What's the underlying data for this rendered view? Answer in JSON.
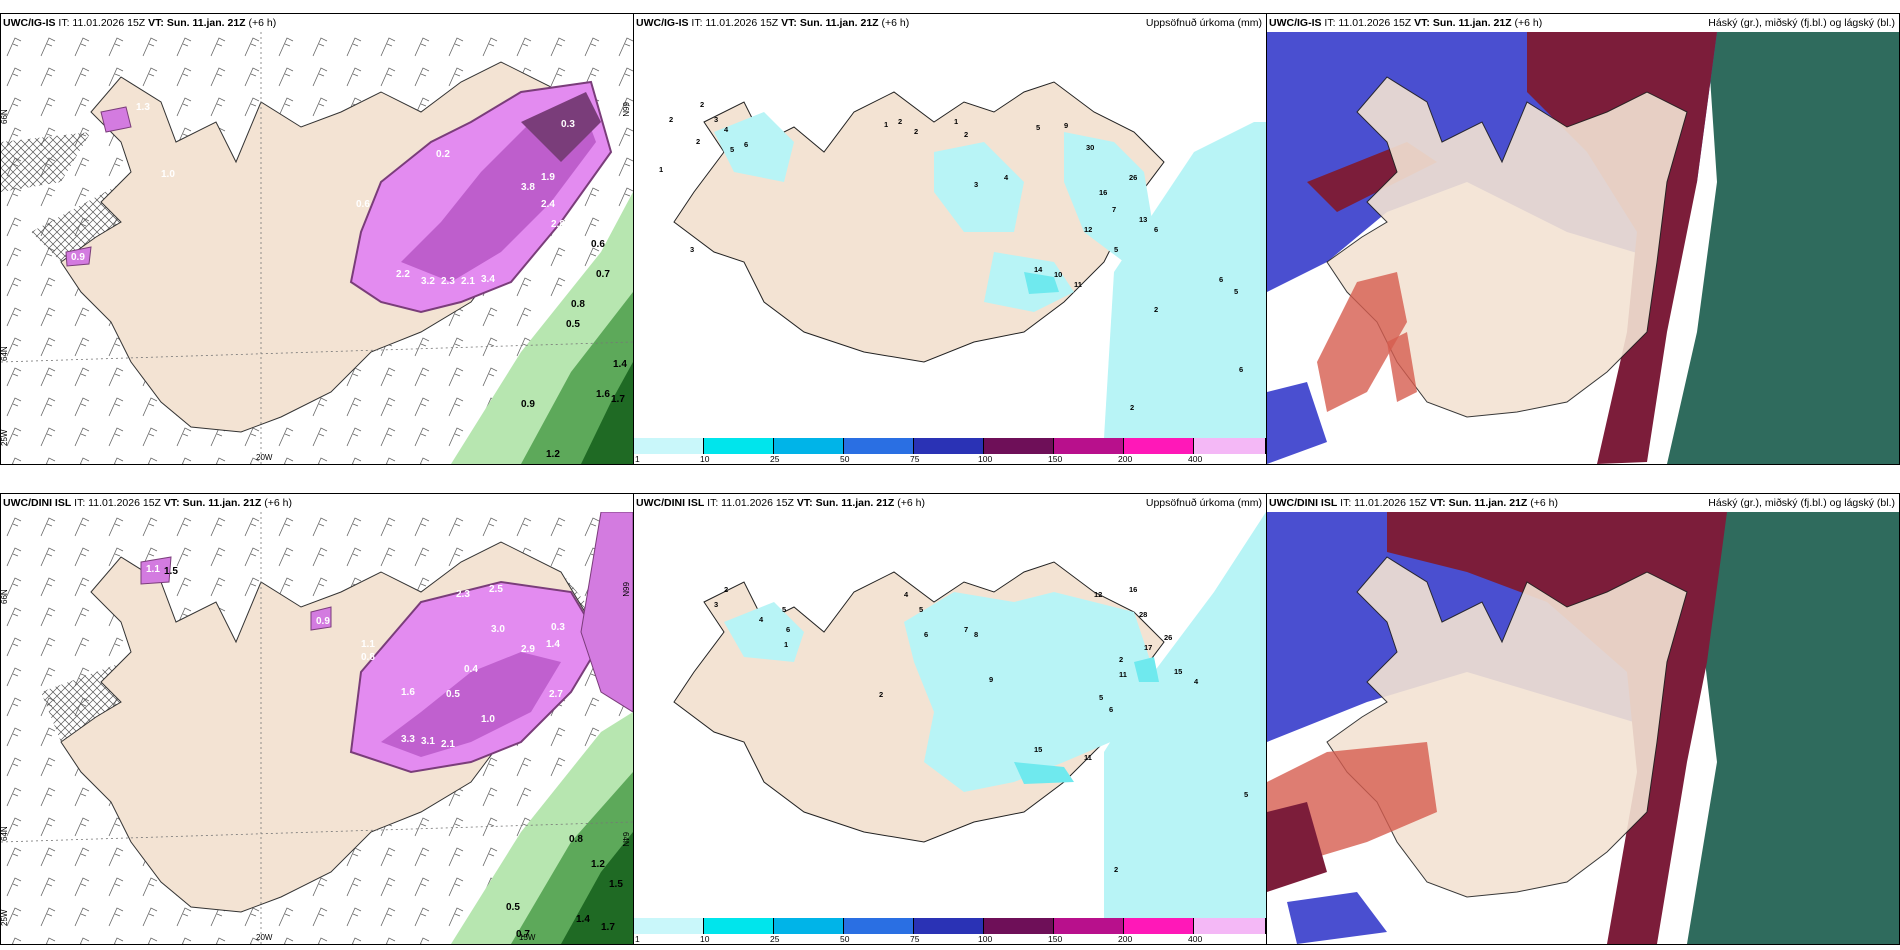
{
  "colors": {
    "land": "#f3e3d3",
    "sea": "#ffffff",
    "precip_light": "#b8f4f6",
    "precip_mid": "#6fe9ee",
    "purple_light": "#e38bf0",
    "purple_dark": "#7a3d7a",
    "green_light": "#b7e6b0",
    "green_dark": "#1f6a24",
    "cloud_high": "#7c1d3a",
    "cloud_mid": "#4a4fd0",
    "cloud_low": "#2f6b5d",
    "cloud_red": "#d65d4f"
  },
  "rows": [
    {
      "model": "UWC/IG-IS",
      "issue": "IT: 11.01.2026 15Z",
      "vt_label": "VT:",
      "valid": "Sun. 11.jan. 21Z",
      "lead": "(+6 h)",
      "left_lat_labels": [
        "66N",
        "64N",
        "25W"
      ],
      "left_bottom_labels": [
        "20W"
      ],
      "left_right_labels": [
        "66N"
      ],
      "left_values": [
        "1.3",
        "0.3",
        "1.0",
        "0.6",
        "0.9",
        "0.2",
        "2.2",
        "3.2",
        "2.3",
        "2.1",
        "3.4",
        "3.8",
        "2.4",
        "2.8",
        "1.9",
        "0.5",
        "0.6",
        "0.7",
        "0.8",
        "0.9",
        "1.4",
        "1.6",
        "1.7",
        "1.2"
      ],
      "precip_title": "Uppsöfnuð úrkoma (mm)",
      "precip_values": [
        "2",
        "3",
        "4",
        "5",
        "6",
        "1",
        "2",
        "3",
        "2",
        "1",
        "2",
        "2",
        "1",
        "2",
        "3",
        "4",
        "5",
        "9",
        "30",
        "26",
        "16",
        "7",
        "13",
        "6",
        "14",
        "10",
        "11",
        "12",
        "5",
        "2",
        "6",
        "5",
        "6",
        "2"
      ],
      "cloud_title": "Háský (gr.), miðský (fj.bl.) og lágský (bl.)"
    },
    {
      "model": "UWC/DINI ISL",
      "issue": "IT: 11.01.2026 15Z",
      "vt_label": "VT:",
      "valid": "Sun. 11.jan. 21Z",
      "lead": "(+6 h)",
      "left_lat_labels": [
        "66N",
        "64N",
        "25W"
      ],
      "left_bottom_labels": [
        "20W",
        "15W"
      ],
      "left_right_labels": [
        "66N",
        "64N"
      ],
      "left_values": [
        "1.1",
        "1.5",
        "0.9",
        "1.1",
        "0.8",
        "2.3",
        "2.5",
        "3.0",
        "2.9",
        "1.6",
        "0.4",
        "0.5",
        "3.3",
        "3.1",
        "2.1",
        "1.0",
        "0.3",
        "1.4",
        "2.7",
        "0.2",
        "0.8",
        "1.2",
        "1.5",
        "0.5",
        "0.7",
        "1.4",
        "1.7"
      ],
      "precip_title": "Uppsöfnuð úrkoma (mm)",
      "precip_values": [
        "2",
        "3",
        "4",
        "5",
        "6",
        "1",
        "4",
        "5",
        "6",
        "7",
        "8",
        "12",
        "16",
        "28",
        "26",
        "17",
        "15",
        "9",
        "11",
        "2",
        "4",
        "5",
        "6",
        "2",
        "15",
        "11",
        "5",
        "2"
      ],
      "cloud_title": "Háský (gr.), miðský (fj.bl.) og lágský (bl.)"
    }
  ],
  "colorbar": {
    "ticks": [
      "1",
      "10",
      "25",
      "50",
      "75",
      "100",
      "150",
      "200",
      "400"
    ],
    "colors": [
      "#c9f7fa",
      "#00e5ec",
      "#00b4e8",
      "#2a6fe3",
      "#2a32b5",
      "#6e0f58",
      "#b8108c",
      "#ff18b8",
      "#f4b8f6"
    ]
  }
}
